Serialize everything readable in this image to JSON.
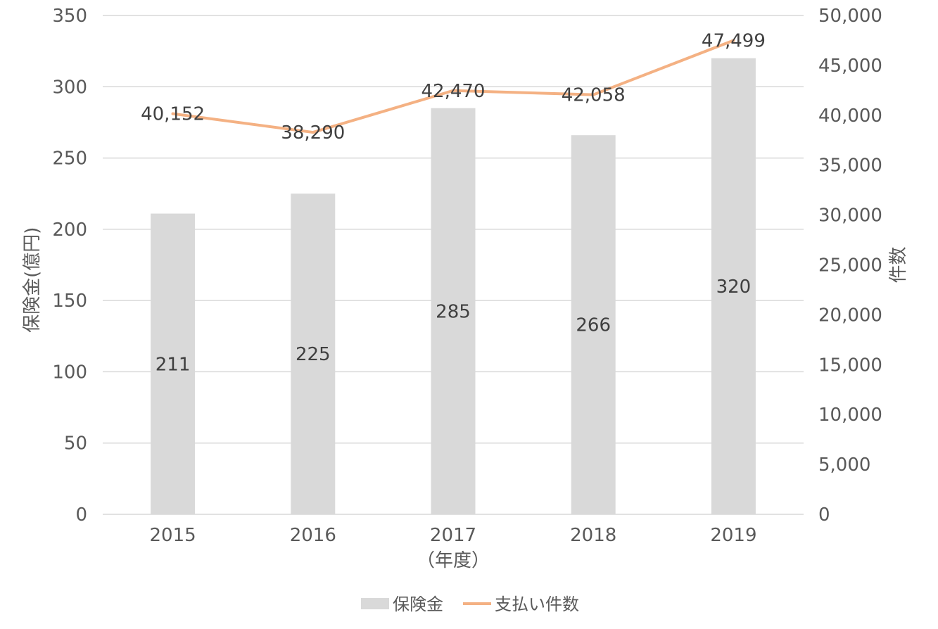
{
  "chart_data": {
    "type": "bar",
    "categories": [
      "2015",
      "2016",
      "2017",
      "2018",
      "2019"
    ],
    "xlabel": "（年度）",
    "series": [
      {
        "name": "保険金",
        "type": "bar",
        "axis": "left",
        "values": [
          211,
          225,
          285,
          266,
          320
        ],
        "data_labels": [
          "211",
          "225",
          "285",
          "266",
          "320"
        ],
        "color": "#d9d9d9"
      },
      {
        "name": "支払い件数",
        "type": "line",
        "axis": "right",
        "values": [
          40152,
          38290,
          42470,
          42058,
          47499
        ],
        "data_labels": [
          "40,152",
          "38,290",
          "42,470",
          "42,058",
          "47,499"
        ],
        "color": "#f4b183"
      }
    ],
    "y_left": {
      "label": "保険金(億円)",
      "ylim": [
        0,
        350
      ],
      "ticks": [
        "0",
        "50",
        "100",
        "150",
        "200",
        "250",
        "300",
        "350"
      ]
    },
    "y_right": {
      "label": "件数",
      "ylim": [
        0,
        50000
      ],
      "ticks": [
        "0",
        "5,000",
        "10,000",
        "15,000",
        "20,000",
        "25,000",
        "30,000",
        "35,000",
        "40,000",
        "45,000",
        "50,000"
      ]
    },
    "grid": true,
    "legend_position": "bottom"
  },
  "colors": {
    "gridline": "#d9d9d9",
    "axis_text": "#595959",
    "label_text": "#404040"
  }
}
